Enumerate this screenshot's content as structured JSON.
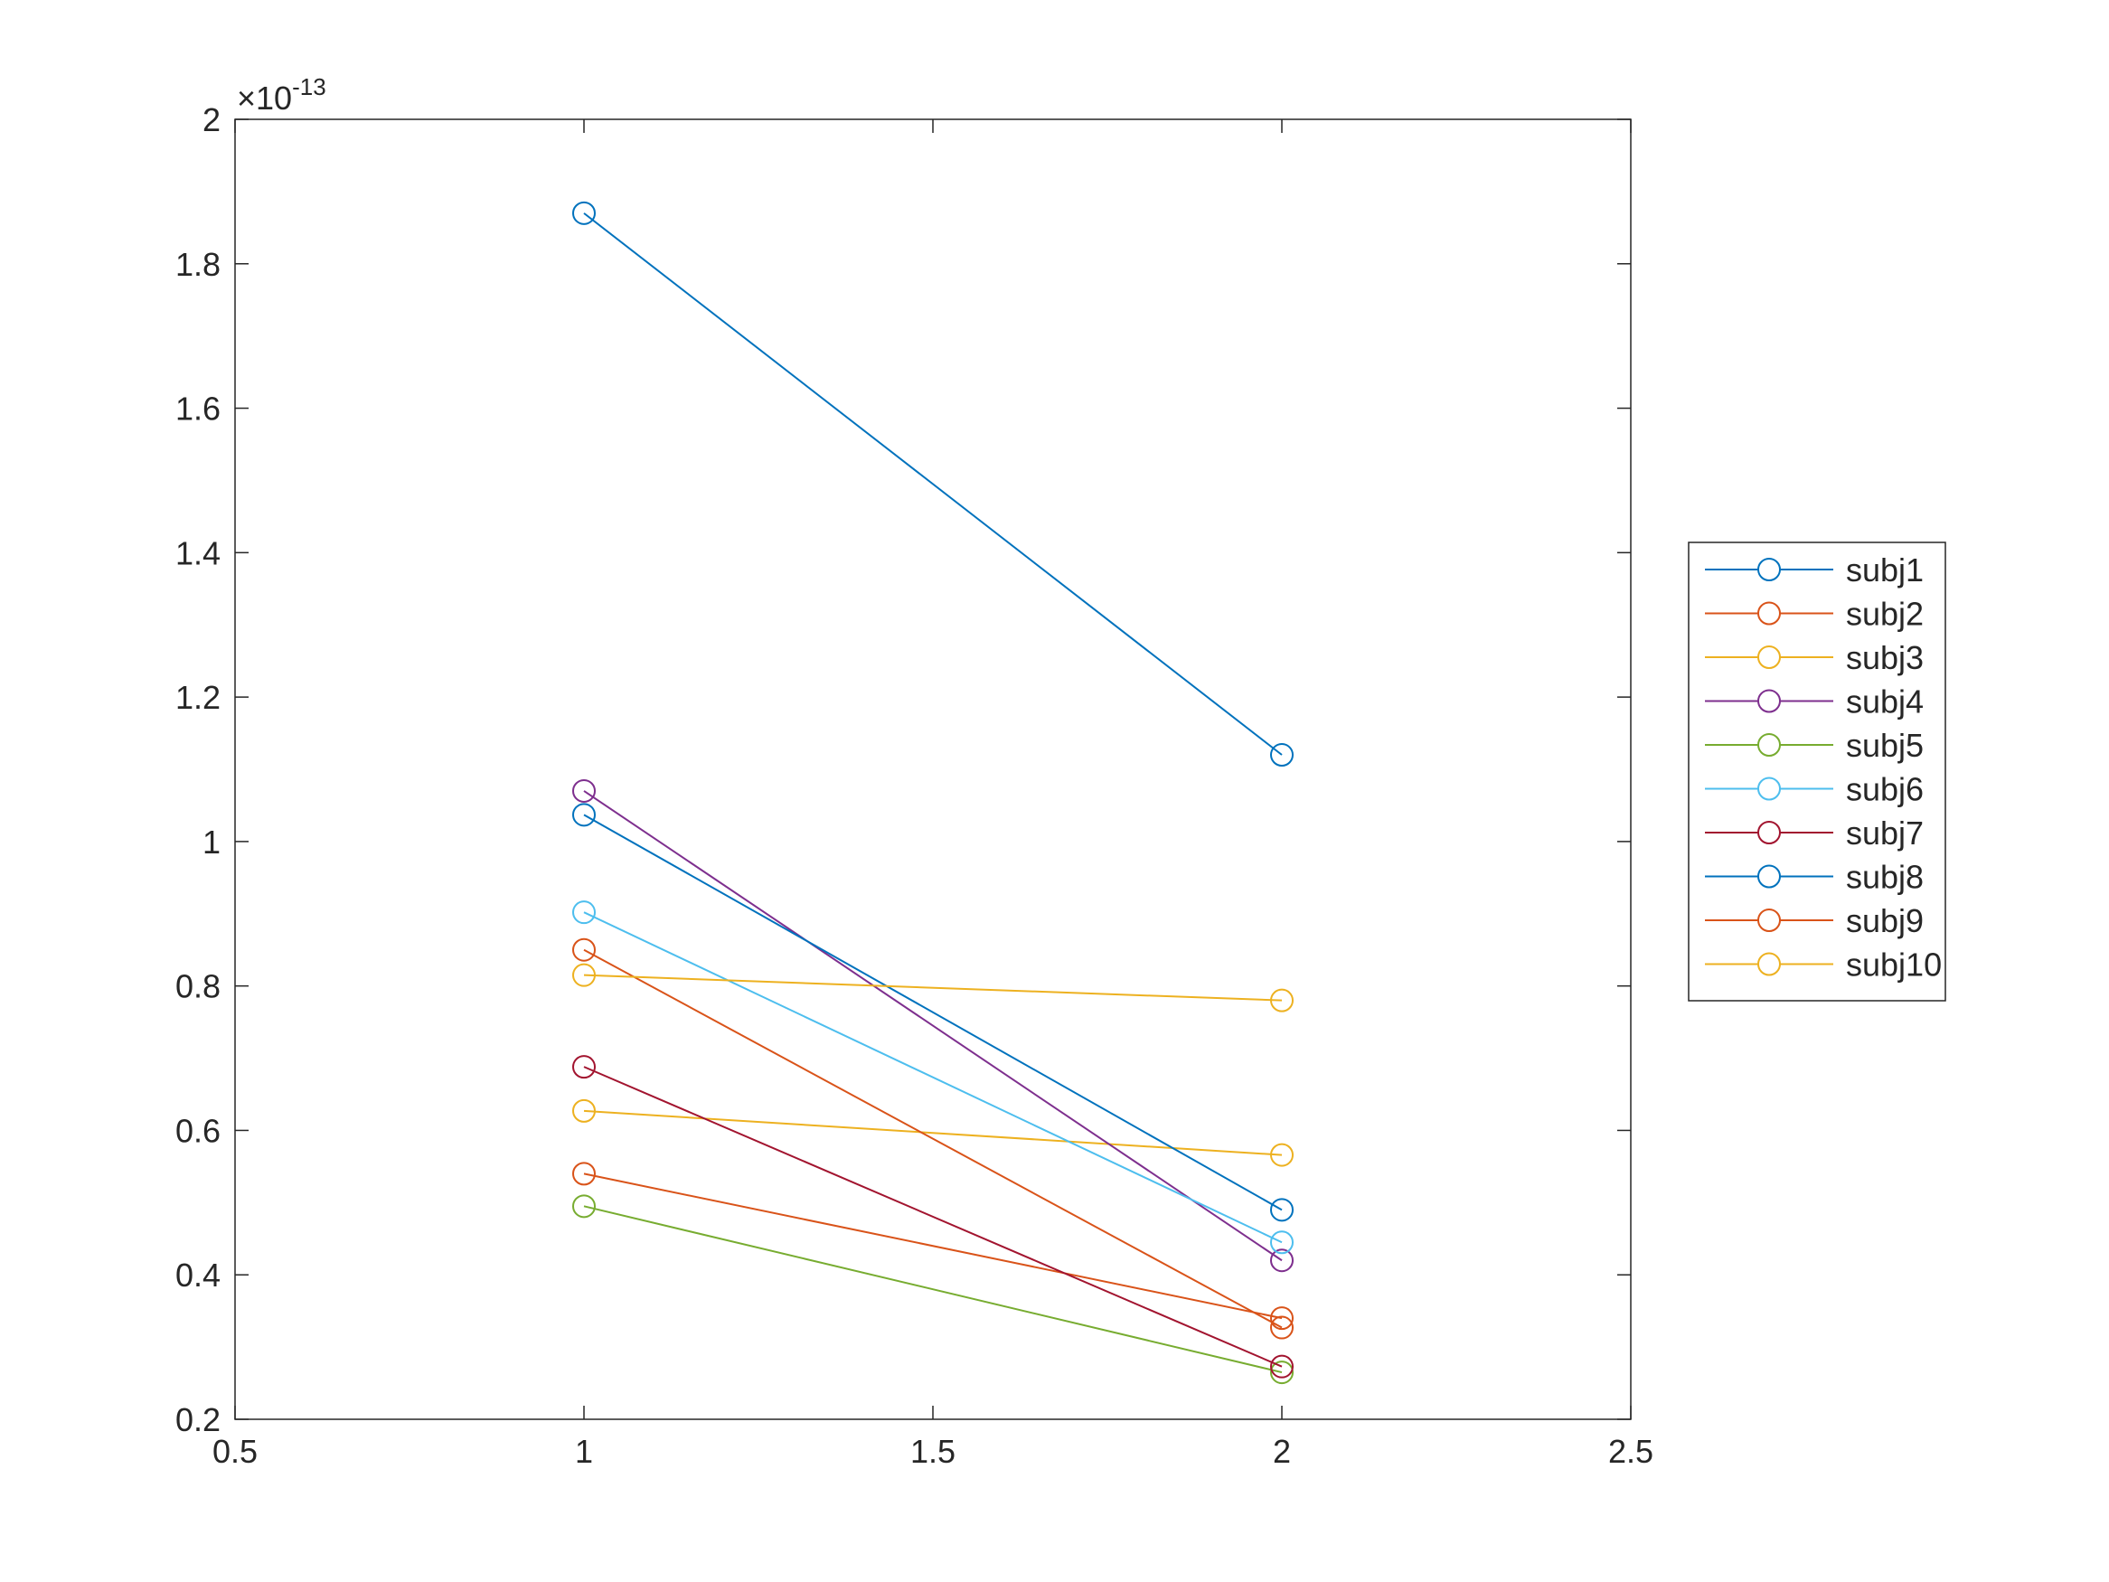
{
  "chart_data": {
    "type": "line",
    "title": "",
    "xlabel": "",
    "ylabel": "",
    "xlim": [
      0.5,
      2.5
    ],
    "ylim": [
      0.2,
      2
    ],
    "x_ticks": [
      0.5,
      1,
      1.5,
      2,
      2.5
    ],
    "x_tick_labels": [
      "0.5",
      "1",
      "1.5",
      "2",
      "2.5"
    ],
    "y_ticks": [
      0.2,
      0.4,
      0.6,
      0.8,
      1,
      1.2,
      1.4,
      1.6,
      1.8,
      2
    ],
    "y_tick_labels": [
      "0.2",
      "0.4",
      "0.6",
      "0.8",
      "1",
      "1.2",
      "1.4",
      "1.6",
      "1.8",
      "2"
    ],
    "y_exponent": {
      "prefix": "×10",
      "power": "-13"
    },
    "grid": false,
    "marker": "open-circle",
    "legend_position": "outside-right",
    "x": [
      1,
      2
    ],
    "series": [
      {
        "name": "subj1",
        "color": "#0072BD",
        "values": [
          1.87,
          1.12
        ]
      },
      {
        "name": "subj2",
        "color": "#D95319",
        "values": [
          0.54,
          0.34
        ]
      },
      {
        "name": "subj3",
        "color": "#EDB120",
        "values": [
          0.627,
          0.566
        ]
      },
      {
        "name": "subj4",
        "color": "#7E2F8E",
        "values": [
          1.07,
          0.42
        ]
      },
      {
        "name": "subj5",
        "color": "#77AC30",
        "values": [
          0.495,
          0.265
        ]
      },
      {
        "name": "subj6",
        "color": "#4DBEEE",
        "values": [
          0.902,
          0.445
        ]
      },
      {
        "name": "subj7",
        "color": "#A2142F",
        "values": [
          0.688,
          0.273
        ]
      },
      {
        "name": "subj8",
        "color": "#0072BD",
        "values": [
          1.037,
          0.49
        ]
      },
      {
        "name": "subj9",
        "color": "#D95319",
        "values": [
          0.85,
          0.327
        ]
      },
      {
        "name": "subj10",
        "color": "#EDB120",
        "values": [
          0.815,
          0.78
        ]
      }
    ]
  }
}
